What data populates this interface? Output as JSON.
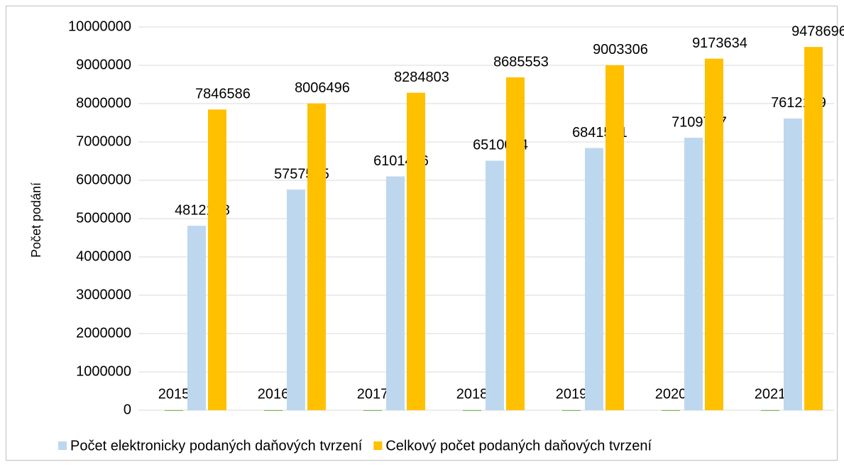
{
  "chart_data": {
    "type": "bar",
    "y_axis_label": "Počet podání",
    "categories": [
      null,
      null,
      null,
      null,
      null,
      null,
      null
    ],
    "series": [
      {
        "color": "#70ad47",
        "values": [
          2015,
          2016,
          2017,
          2018,
          2019,
          2020,
          2021
        ]
      },
      {
        "name": "Počet elektronicky podaných daňových tvrzení",
        "color": "#bdd7ee",
        "values": [
          4812198,
          5757535,
          6101406,
          6510004,
          6841541,
          7109717,
          7612139
        ]
      },
      {
        "name": "Celkový počet podaných daňových tvrzení",
        "color": "#ffc000",
        "values": [
          7846586,
          8006496,
          8284803,
          8685553,
          9003306,
          9173634,
          9478696
        ]
      }
    ],
    "ylim": [
      0,
      10000000
    ],
    "yticks": [
      0,
      1000000,
      2000000,
      3000000,
      4000000,
      5000000,
      6000000,
      7000000,
      8000000,
      9000000,
      10000000
    ],
    "grid": true,
    "legend": "bottom"
  }
}
